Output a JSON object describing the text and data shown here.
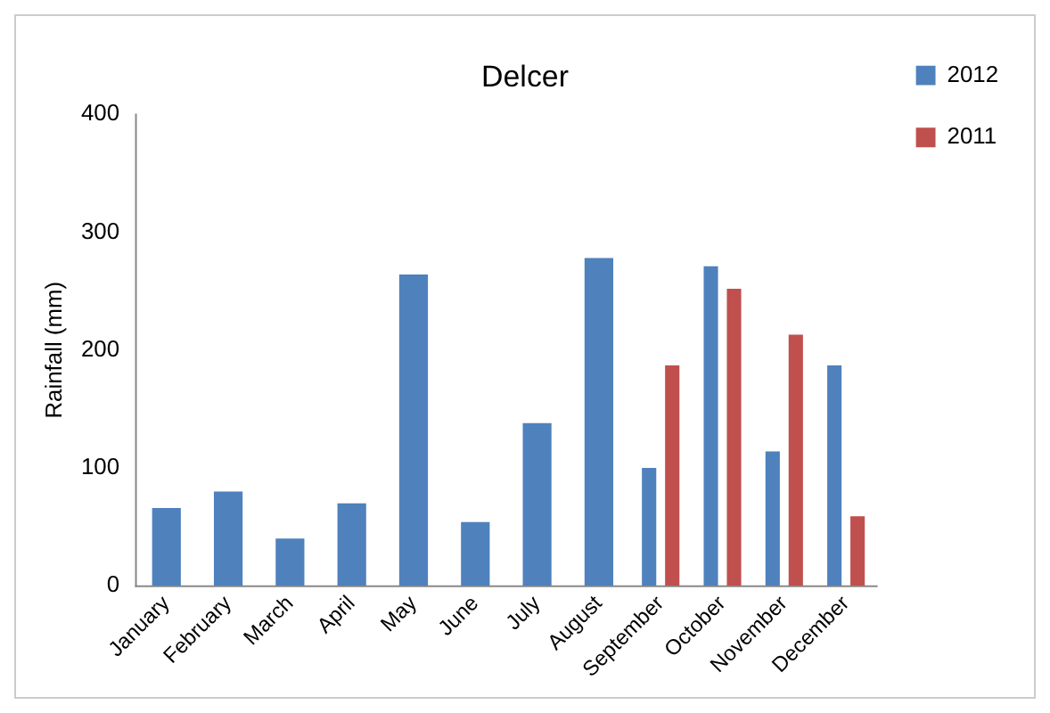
{
  "chart_data": {
    "type": "bar",
    "title": "Delcer",
    "ylabel": "Rainfall (mm)",
    "categories": [
      "January",
      "February",
      "March",
      "April",
      "May",
      "June",
      "July",
      "August",
      "September",
      "October",
      "November",
      "December"
    ],
    "series": [
      {
        "name": "2012",
        "color": "#4f81bd",
        "values": [
          66,
          80,
          40,
          70,
          264,
          54,
          138,
          278,
          100,
          271,
          114,
          187
        ]
      },
      {
        "name": "2011",
        "color": "#c0504d",
        "values": [
          null,
          null,
          null,
          null,
          null,
          null,
          null,
          null,
          187,
          252,
          213,
          59
        ]
      }
    ],
    "ylim": [
      0,
      400
    ],
    "yticks": [
      0,
      100,
      200,
      300,
      400
    ],
    "grid": false,
    "legend": "top right"
  }
}
